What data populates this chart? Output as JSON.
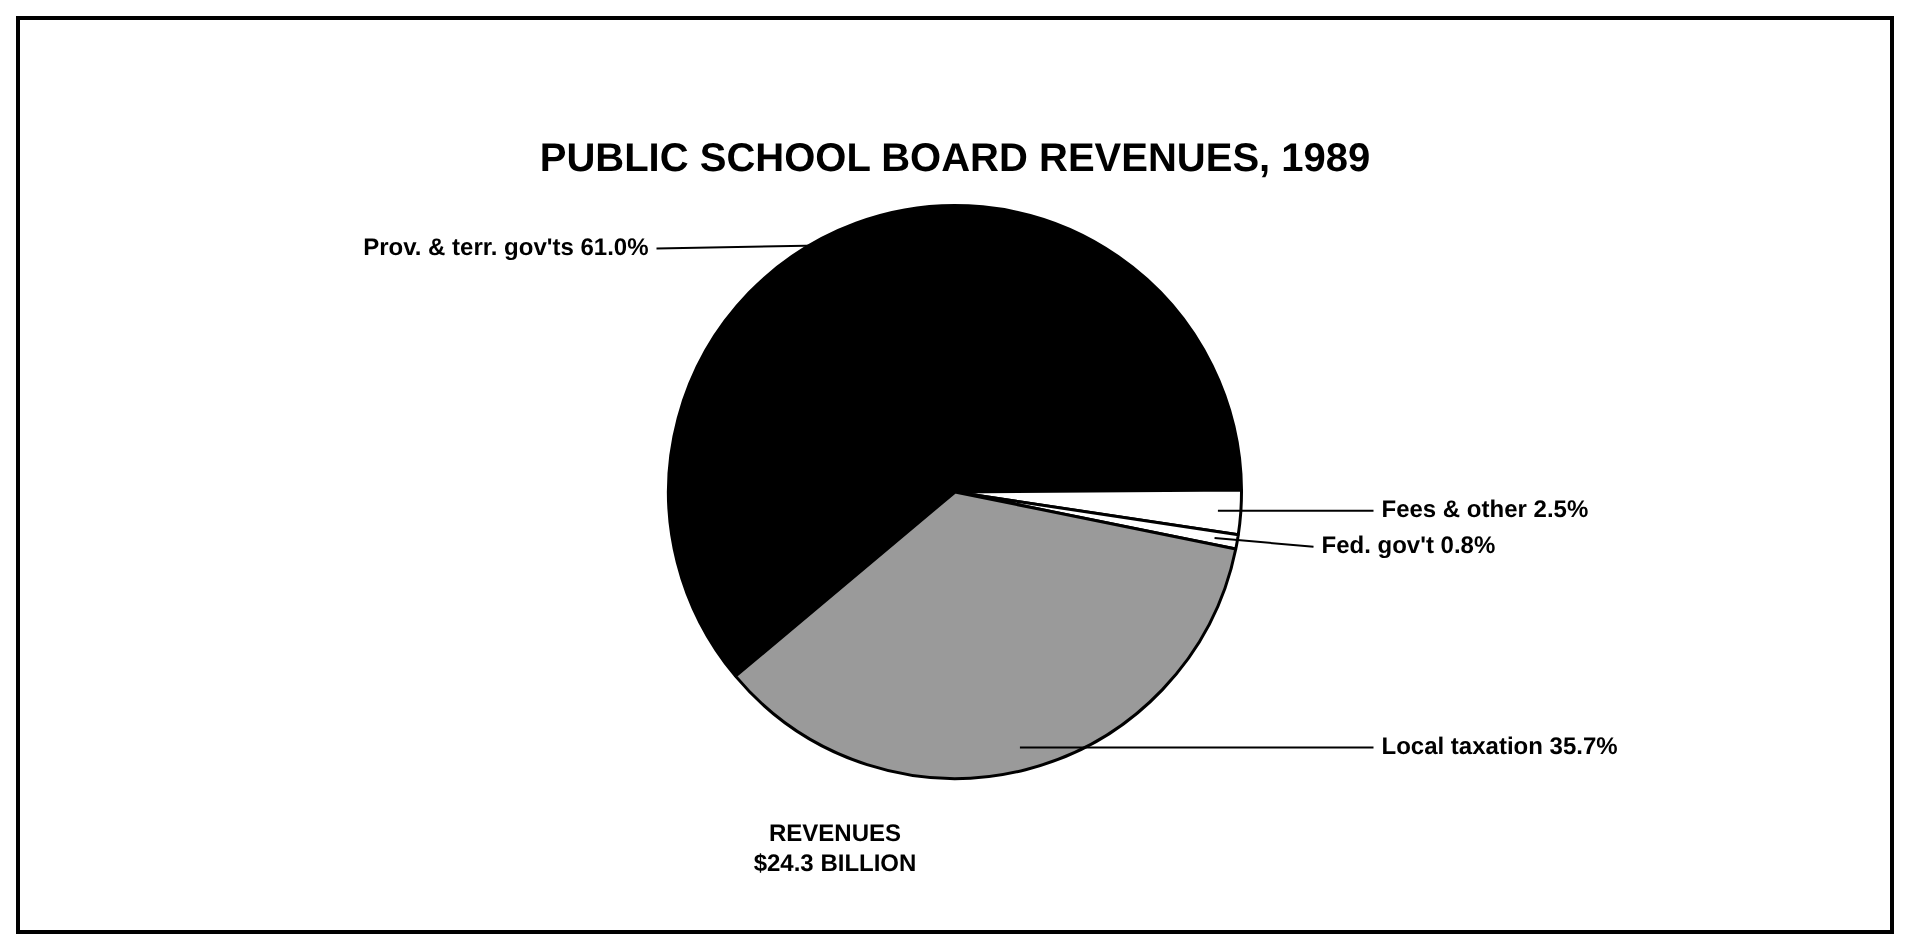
{
  "chart_data": {
    "type": "pie",
    "title": "PUBLIC SCHOOL BOARD REVENUES, 1989",
    "categories": [
      "Prov. & terr. gov'ts",
      "Fees & other",
      "Fed. gov't",
      "Local taxation"
    ],
    "values": [
      61.0,
      2.5,
      0.8,
      35.7
    ],
    "value_labels": [
      "61.0%",
      "2.5%",
      "0.8%",
      "35.7%"
    ],
    "colors": [
      "#000000",
      "#ffffff",
      "#ffffff",
      "#9a9a9a"
    ],
    "annotations": [
      "REVENUES",
      "$24.3 BILLION"
    ],
    "legend": false
  }
}
